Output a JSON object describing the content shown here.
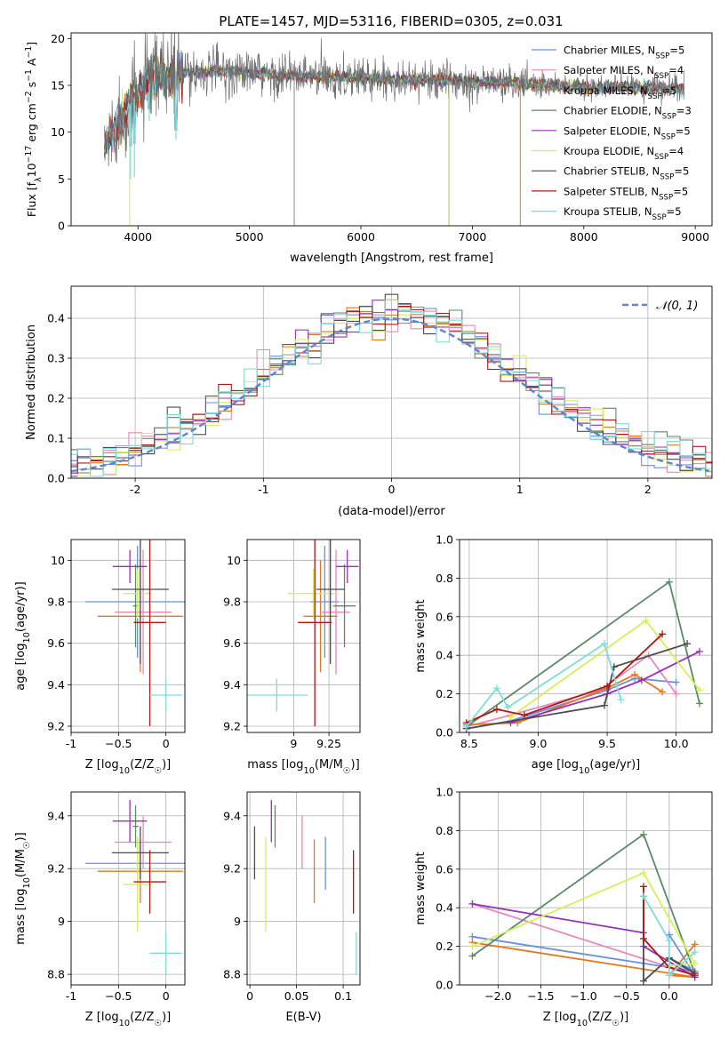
{
  "figure": {
    "title": "PLATE=1457, MJD=53116, FIBERID=0305, z=0.031",
    "palette": {
      "chab_miles": "#6b8fe0",
      "salp_miles": "#e589c0",
      "krou_miles": "#e07a20",
      "chab_elodie": "#5b8a66",
      "salp_elodie": "#9b30b8",
      "krou_elodie": "#d6ef5a",
      "chab_stelib": "#4c4c4c",
      "salp_stelib": "#b01818",
      "krou_stelib": "#7fdcdc"
    }
  },
  "chart_data": [
    {
      "id": "spectrum",
      "type": "line",
      "xlabel": "wavelength [Angstrom, rest frame]",
      "ylabel": "Flux [f_λ10^-17 erg cm^-2 s^-1 A^-1]",
      "xlim": [
        3400,
        9150
      ],
      "ylim": [
        0,
        20.6
      ],
      "xticks": [
        4000,
        5000,
        6000,
        7000,
        8000,
        9000
      ],
      "yticks": [
        0,
        5,
        10,
        15,
        20
      ],
      "grid": false,
      "legend_position": "top-right",
      "data_range": [
        3700,
        8900
      ],
      "continuum": [
        [
          3700,
          8.5
        ],
        [
          3800,
          10.5
        ],
        [
          3900,
          12.5
        ],
        [
          4000,
          14.2
        ],
        [
          4150,
          15.6
        ],
        [
          4400,
          16.4
        ],
        [
          4800,
          16.5
        ],
        [
          5200,
          16.1
        ],
        [
          5600,
          15.9
        ],
        [
          6000,
          15.8
        ],
        [
          6400,
          15.6
        ],
        [
          6800,
          15.5
        ],
        [
          7200,
          15.3
        ],
        [
          7600,
          15.1
        ],
        [
          8000,
          14.8
        ],
        [
          8400,
          14.8
        ],
        [
          8900,
          14.6
        ]
      ],
      "features": [
        {
          "x": 3933,
          "y": 7.5
        },
        {
          "x": 3968,
          "y": 7.8
        },
        {
          "x": 4101,
          "y": 11.5
        },
        {
          "x": 4340,
          "y": 9.2
        },
        {
          "x": 5402,
          "y": 0.0
        },
        {
          "x": 6790,
          "y": 0.0
        },
        {
          "x": 7430,
          "y": 0.0
        },
        {
          "x": 3925,
          "y": 0.0
        }
      ],
      "legend": [
        {
          "label": "Chabrier MILES, N_SSP=5",
          "color": "#6b8fe0"
        },
        {
          "label": "Salpeter MILES, N_SSP=4",
          "color": "#e589c0"
        },
        {
          "label": "Kroupa MILES, N_SSP=5",
          "color": "#e07a20"
        },
        {
          "label": "Chabrier ELODIE, N_SSP=3",
          "color": "#5b8a66"
        },
        {
          "label": "Salpeter ELODIE, N_SSP=5",
          "color": "#9b30b8"
        },
        {
          "label": "Kroupa ELODIE, N_SSP=4",
          "color": "#d6ef5a"
        },
        {
          "label": "Chabrier STELIB, N_SSP=5",
          "color": "#4c4c4c"
        },
        {
          "label": "Salpeter STELIB, N_SSP=5",
          "color": "#b01818"
        },
        {
          "label": "Kroupa STELIB, N_SSP=5",
          "color": "#7fdcdc"
        }
      ]
    },
    {
      "id": "residuals",
      "type": "line",
      "xlabel": "(data-model)/error",
      "ylabel": "Normed distribution",
      "xlim": [
        -2.5,
        2.5
      ],
      "ylim": [
        0,
        0.48
      ],
      "xticks": [
        -2,
        -1,
        0,
        1,
        2
      ],
      "yticks": [
        0.0,
        0.1,
        0.2,
        0.3,
        0.4
      ],
      "grid": true,
      "legend_position": "top-right",
      "legend": [
        {
          "label": "N(0,1)",
          "color": "#5b86d8"
        }
      ],
      "bin_width": 0.1
    },
    {
      "id": "age_vs_Z",
      "type": "scatter",
      "xlabel": "Z [log10(Z/Z☉)]",
      "ylabel": "age  [log10(age/yr)]",
      "xlim": [
        -1.0,
        0.2
      ],
      "ylim": [
        9.17,
        10.1
      ],
      "xticks": [
        -1.0,
        -0.5,
        0.0
      ],
      "yticks": [
        9.2,
        9.4,
        9.6,
        9.8,
        10.0
      ],
      "grid": true,
      "points": [
        {
          "series": "chab_miles",
          "x": -0.3,
          "xerr": 0.55,
          "y": 9.8,
          "yerr": 0.27
        },
        {
          "series": "salp_miles",
          "x": -0.24,
          "xerr": 0.3,
          "y": 9.75,
          "yerr": 0.3
        },
        {
          "series": "krou_miles",
          "x": -0.27,
          "xerr": 0.45,
          "y": 9.73,
          "yerr": 0.27
        },
        {
          "series": "chab_elodie",
          "x": -0.32,
          "xerr": 0.03,
          "y": 9.78,
          "yerr": 0.2
        },
        {
          "series": "salp_elodie",
          "x": -0.38,
          "xerr": 0.18,
          "y": 9.97,
          "yerr": 0.08
        },
        {
          "series": "krou_elodie",
          "x": -0.3,
          "xerr": 0.15,
          "y": 9.84,
          "yerr": 0.12
        },
        {
          "series": "chab_stelib",
          "x": -0.27,
          "xerr": 0.3,
          "y": 9.86,
          "yerr": 0.36
        },
        {
          "series": "salp_stelib",
          "x": -0.17,
          "xerr": 0.17,
          "y": 9.7,
          "yerr": 0.5
        },
        {
          "series": "krou_stelib",
          "x": 0.0,
          "xerr": 0.17,
          "y": 9.35,
          "yerr": 0.08
        }
      ]
    },
    {
      "id": "age_vs_mass",
      "type": "scatter",
      "xlabel": "mass [log10(M/M☉)]",
      "ylabel": "",
      "xlim": [
        8.67,
        9.47
      ],
      "ylim": [
        9.17,
        10.1
      ],
      "xticks": [
        9.0,
        9.25
      ],
      "yticks": [
        9.2,
        9.4,
        9.6,
        9.8,
        10.0
      ],
      "grid": true,
      "points": [
        {
          "series": "chab_miles",
          "x": 9.22,
          "xerr": 0.1,
          "y": 9.8,
          "yerr": 0.27
        },
        {
          "series": "salp_miles",
          "x": 9.3,
          "xerr": 0.1,
          "y": 9.75,
          "yerr": 0.3
        },
        {
          "series": "krou_miles",
          "x": 9.19,
          "xerr": 0.12,
          "y": 9.73,
          "yerr": 0.27
        },
        {
          "series": "chab_elodie",
          "x": 9.36,
          "xerr": 0.08,
          "y": 9.78,
          "yerr": 0.2
        },
        {
          "series": "salp_elodie",
          "x": 9.38,
          "xerr": 0.08,
          "y": 9.97,
          "yerr": 0.08
        },
        {
          "series": "krou_elodie",
          "x": 9.14,
          "xerr": 0.18,
          "y": 9.84,
          "yerr": 0.12
        },
        {
          "series": "chab_stelib",
          "x": 9.26,
          "xerr": 0.1,
          "y": 9.86,
          "yerr": 0.36
        },
        {
          "series": "salp_stelib",
          "x": 9.15,
          "xerr": 0.12,
          "y": 9.7,
          "yerr": 0.5
        },
        {
          "series": "krou_stelib",
          "x": 8.88,
          "xerr": 0.22,
          "y": 9.35,
          "yerr": 0.08
        }
      ]
    },
    {
      "id": "massweight_vs_age",
      "type": "line",
      "xlabel": "age  [log10(age/yr)]",
      "ylabel": "mass weight",
      "xlim": [
        8.43,
        10.26
      ],
      "ylim": [
        0,
        1.0
      ],
      "xticks": [
        8.5,
        9.0,
        9.5,
        10.0
      ],
      "yticks": [
        0.0,
        0.2,
        0.4,
        0.6,
        0.8,
        1.0
      ],
      "grid": true,
      "series": [
        {
          "name": "chab_miles",
          "points": [
            [
              8.48,
              0.02
            ],
            [
              8.8,
              0.06
            ],
            [
              9.5,
              0.22
            ],
            [
              9.7,
              0.28
            ],
            [
              10.0,
              0.26
            ]
          ]
        },
        {
          "name": "salp_miles",
          "points": [
            [
              8.48,
              0.03
            ],
            [
              8.8,
              0.09
            ],
            [
              9.45,
              0.22
            ],
            [
              9.8,
              0.4
            ],
            [
              10.0,
              0.2
            ]
          ]
        },
        {
          "name": "krou_miles",
          "points": [
            [
              8.48,
              0.04
            ],
            [
              8.85,
              0.05
            ],
            [
              9.5,
              0.23
            ],
            [
              9.7,
              0.3
            ],
            [
              9.9,
              0.21
            ]
          ]
        },
        {
          "name": "chab_elodie",
          "points": [
            [
              8.48,
              0.03
            ],
            [
              9.95,
              0.78
            ],
            [
              10.17,
              0.15
            ]
          ]
        },
        {
          "name": "salp_elodie",
          "points": [
            [
              8.8,
              0.05
            ],
            [
              9.5,
              0.2
            ],
            [
              9.75,
              0.27
            ],
            [
              10.17,
              0.42
            ]
          ]
        },
        {
          "name": "krou_elodie",
          "points": [
            [
              8.8,
              0.08
            ],
            [
              9.78,
              0.58
            ],
            [
              10.17,
              0.22
            ]
          ]
        },
        {
          "name": "chab_stelib",
          "points": [
            [
              8.48,
              0.02
            ],
            [
              9.48,
              0.14
            ],
            [
              9.55,
              0.34
            ],
            [
              10.08,
              0.46
            ]
          ]
        },
        {
          "name": "salp_stelib",
          "points": [
            [
              8.48,
              0.05
            ],
            [
              8.7,
              0.12
            ],
            [
              8.9,
              0.09
            ],
            [
              9.5,
              0.24
            ],
            [
              9.9,
              0.51
            ]
          ]
        },
        {
          "name": "krou_stelib",
          "points": [
            [
              8.48,
              0.03
            ],
            [
              8.7,
              0.23
            ],
            [
              8.78,
              0.13
            ],
            [
              9.48,
              0.46
            ],
            [
              9.6,
              0.17
            ]
          ]
        }
      ]
    },
    {
      "id": "mass_vs_Z",
      "type": "scatter",
      "xlabel": "Z [log10(Z/Z☉)]",
      "ylabel": "mass [log10(M/M☉)]",
      "xlim": [
        -1.0,
        0.2
      ],
      "ylim": [
        8.76,
        9.49
      ],
      "xticks": [
        -1.0,
        -0.5,
        0.0
      ],
      "yticks": [
        8.8,
        9.0,
        9.2,
        9.4
      ],
      "grid": true,
      "points": [
        {
          "series": "chab_miles",
          "x": -0.3,
          "xerr": 0.55,
          "y": 9.22,
          "yerr": 0.1
        },
        {
          "series": "salp_miles",
          "x": -0.24,
          "xerr": 0.3,
          "y": 9.3,
          "yerr": 0.1
        },
        {
          "series": "krou_miles",
          "x": -0.27,
          "xerr": 0.45,
          "y": 9.19,
          "yerr": 0.12
        },
        {
          "series": "chab_elodie",
          "x": -0.32,
          "xerr": 0.03,
          "y": 9.36,
          "yerr": 0.08
        },
        {
          "series": "salp_elodie",
          "x": -0.38,
          "xerr": 0.18,
          "y": 9.38,
          "yerr": 0.08
        },
        {
          "series": "krou_elodie",
          "x": -0.3,
          "xerr": 0.15,
          "y": 9.14,
          "yerr": 0.18
        },
        {
          "series": "chab_stelib",
          "x": -0.27,
          "xerr": 0.3,
          "y": 9.26,
          "yerr": 0.1
        },
        {
          "series": "salp_stelib",
          "x": -0.17,
          "xerr": 0.17,
          "y": 9.15,
          "yerr": 0.12
        },
        {
          "series": "krou_stelib",
          "x": 0.0,
          "xerr": 0.17,
          "y": 8.88,
          "yerr": 0.08
        }
      ]
    },
    {
      "id": "mass_vs_ebv",
      "type": "scatter",
      "xlabel": "E(B-V)",
      "ylabel": "",
      "xlim": [
        -0.003,
        0.118
      ],
      "ylim": [
        8.76,
        9.49
      ],
      "xticks": [
        0.0,
        0.05,
        0.1
      ],
      "yticks": [
        8.8,
        9.0,
        9.2,
        9.4
      ],
      "grid": true,
      "points": [
        {
          "series": "chab_miles",
          "x": 0.081,
          "y": 9.22,
          "yerr": 0.1
        },
        {
          "series": "salp_miles",
          "x": 0.056,
          "y": 9.3,
          "yerr": 0.1
        },
        {
          "series": "krou_miles",
          "x": 0.069,
          "y": 9.19,
          "yerr": 0.12
        },
        {
          "series": "chab_elodie",
          "x": 0.027,
          "y": 9.36,
          "yerr": 0.08
        },
        {
          "series": "salp_elodie",
          "x": 0.023,
          "y": 9.38,
          "yerr": 0.08
        },
        {
          "series": "krou_elodie",
          "x": 0.017,
          "y": 9.14,
          "yerr": 0.18
        },
        {
          "series": "chab_stelib",
          "x": 0.005,
          "y": 9.26,
          "yerr": 0.1
        },
        {
          "series": "salp_stelib",
          "x": 0.111,
          "y": 9.15,
          "yerr": 0.12
        },
        {
          "series": "krou_stelib",
          "x": 0.114,
          "y": 8.88,
          "yerr": 0.08
        }
      ]
    },
    {
      "id": "massweight_vs_Z",
      "type": "line",
      "xlabel": "Z [log10(Z/Z☉)]",
      "ylabel": "mass weight",
      "xlim": [
        -2.45,
        0.5
      ],
      "ylim": [
        0,
        1.0
      ],
      "xticks": [
        -2.0,
        -1.5,
        -1.0,
        -0.5,
        0.0
      ],
      "yticks": [
        0.0,
        0.2,
        0.4,
        0.6,
        0.8,
        1.0
      ],
      "grid": true,
      "series": [
        {
          "name": "chab_miles",
          "points": [
            [
              -2.3,
              0.25
            ],
            [
              0.3,
              0.07
            ],
            [
              0.0,
              0.14
            ],
            [
              0.3,
              0.05
            ],
            [
              0.0,
              0.26
            ]
          ]
        },
        {
          "name": "salp_miles",
          "points": [
            [
              -2.3,
              0.42
            ],
            [
              0.3,
              0.05
            ],
            [
              0.0,
              0.09
            ],
            [
              0.3,
              0.06
            ]
          ]
        },
        {
          "name": "krou_miles",
          "points": [
            [
              -2.3,
              0.22
            ],
            [
              0.3,
              0.04
            ],
            [
              0.0,
              0.05
            ],
            [
              0.3,
              0.21
            ]
          ]
        },
        {
          "name": "chab_elodie",
          "points": [
            [
              -2.3,
              0.15
            ],
            [
              -0.3,
              0.78
            ],
            [
              0.3,
              0.06
            ]
          ]
        },
        {
          "name": "salp_elodie",
          "points": [
            [
              -2.3,
              0.42
            ],
            [
              -0.3,
              0.27
            ],
            [
              -0.3,
              0.2
            ],
            [
              0.3,
              0.04
            ]
          ]
        },
        {
          "name": "krou_elodie",
          "points": [
            [
              -2.3,
              0.2
            ],
            [
              -0.3,
              0.58
            ],
            [
              0.3,
              0.11
            ],
            [
              0.0,
              0.1
            ]
          ]
        },
        {
          "name": "chab_stelib",
          "points": [
            [
              -0.3,
              0.46
            ],
            [
              -0.3,
              0.02
            ],
            [
              0.0,
              0.14
            ],
            [
              0.3,
              0.06
            ]
          ]
        },
        {
          "name": "salp_stelib",
          "points": [
            [
              -0.3,
              0.51
            ],
            [
              -0.3,
              0.24
            ],
            [
              0.0,
              0.09
            ],
            [
              0.3,
              0.05
            ]
          ]
        },
        {
          "name": "krou_stelib",
          "points": [
            [
              -0.3,
              0.46
            ],
            [
              0.0,
              0.23
            ],
            [
              0.0,
              0.05
            ],
            [
              0.3,
              0.17
            ]
          ]
        }
      ]
    }
  ]
}
